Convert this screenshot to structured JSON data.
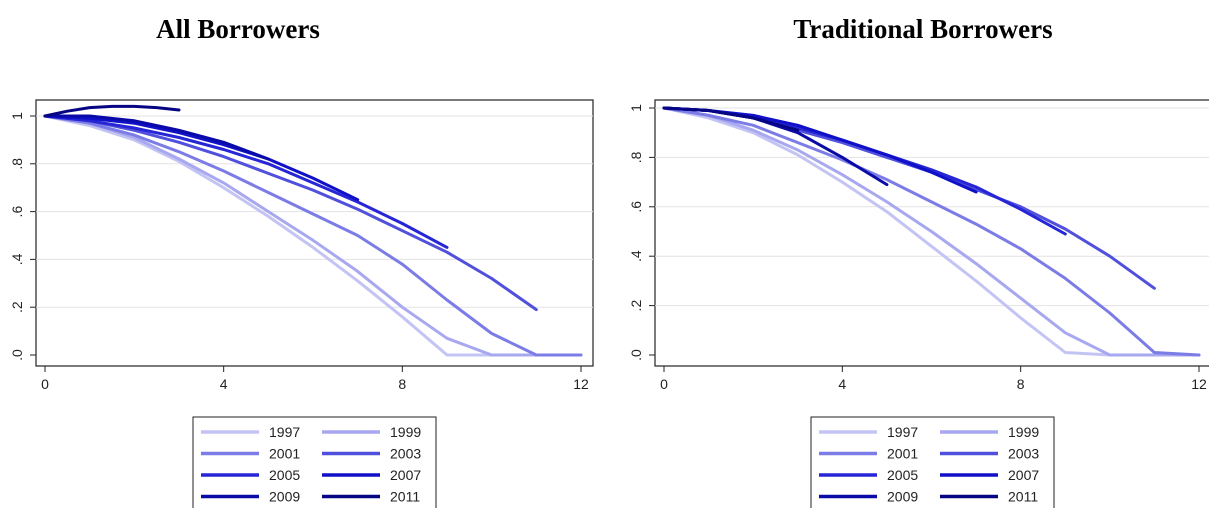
{
  "chart_data": [
    {
      "type": "line",
      "title": "All Borrowers",
      "xlabel": "",
      "ylabel": "",
      "xlim": [
        0,
        12
      ],
      "ylim": [
        0,
        1
      ],
      "x_ticks": [
        "0",
        "4",
        "8",
        "12"
      ],
      "y_ticks": [
        ".0",
        ".2",
        ".4",
        ".6",
        ".8",
        "1"
      ],
      "grid": true,
      "legend": "bottom",
      "series": [
        {
          "name": "1997",
          "color": "#c4c4f4",
          "x": [
            0,
            1,
            2,
            3,
            4,
            5,
            6,
            7,
            8,
            9,
            10,
            11,
            12
          ],
          "y": [
            1,
            0.96,
            0.9,
            0.81,
            0.7,
            0.58,
            0.45,
            0.31,
            0.16,
            0,
            0,
            0,
            0
          ]
        },
        {
          "name": "1999",
          "color": "#a8a8f0",
          "x": [
            0,
            1,
            2,
            3,
            4,
            5,
            6,
            7,
            8,
            9,
            10,
            11,
            12
          ],
          "y": [
            1,
            0.97,
            0.91,
            0.82,
            0.72,
            0.6,
            0.48,
            0.35,
            0.2,
            0.07,
            0,
            0,
            0
          ]
        },
        {
          "name": "2001",
          "color": "#7c7ce6",
          "x": [
            0,
            1,
            2,
            3,
            4,
            5,
            6,
            7,
            8,
            9,
            10,
            11,
            12
          ],
          "y": [
            1,
            0.97,
            0.92,
            0.85,
            0.77,
            0.68,
            0.59,
            0.5,
            0.38,
            0.23,
            0.09,
            0,
            0
          ]
        },
        {
          "name": "2003",
          "color": "#5050dc",
          "x": [
            0,
            1,
            2,
            3,
            4,
            5,
            6,
            7,
            8,
            9,
            10,
            11
          ],
          "y": [
            1,
            0.98,
            0.94,
            0.89,
            0.83,
            0.76,
            0.69,
            0.61,
            0.52,
            0.43,
            0.32,
            0.19
          ]
        },
        {
          "name": "2005",
          "color": "#2626d6",
          "x": [
            0,
            1,
            2,
            3,
            4,
            5,
            6,
            7,
            8,
            9
          ],
          "y": [
            1,
            0.98,
            0.95,
            0.91,
            0.86,
            0.8,
            0.72,
            0.64,
            0.55,
            0.45
          ]
        },
        {
          "name": "2007",
          "color": "#1010c8",
          "x": [
            0,
            1,
            2,
            3,
            4,
            5,
            6,
            7
          ],
          "y": [
            1,
            0.99,
            0.97,
            0.93,
            0.88,
            0.82,
            0.74,
            0.65
          ]
        },
        {
          "name": "2009",
          "color": "#0a0aa8",
          "x": [
            0,
            1,
            2,
            3,
            4,
            5
          ],
          "y": [
            1,
            1,
            0.98,
            0.94,
            0.89,
            0.82
          ]
        },
        {
          "name": "2011",
          "color": "#060684",
          "x": [
            0,
            0.5,
            1,
            1.5,
            2,
            2.5,
            3
          ],
          "y": [
            1,
            1.02,
            1.035,
            1.04,
            1.04,
            1.035,
            1.025
          ]
        }
      ]
    },
    {
      "type": "line",
      "title": "Traditional Borrowers",
      "xlabel": "",
      "ylabel": "",
      "xlim": [
        0,
        12
      ],
      "ylim": [
        0,
        1
      ],
      "x_ticks": [
        "0",
        "4",
        "8",
        "12"
      ],
      "y_ticks": [
        ".0",
        ".2",
        ".4",
        ".6",
        ".8",
        "1"
      ],
      "grid": true,
      "legend": "bottom",
      "series": [
        {
          "name": "1997",
          "color": "#c4c4f4",
          "x": [
            0,
            1,
            2,
            3,
            4,
            5,
            6,
            7,
            8,
            9,
            10,
            11,
            12
          ],
          "y": [
            1,
            0.96,
            0.9,
            0.81,
            0.7,
            0.58,
            0.44,
            0.3,
            0.15,
            0.01,
            0,
            0,
            0
          ]
        },
        {
          "name": "1999",
          "color": "#a8a8f0",
          "x": [
            0,
            1,
            2,
            3,
            4,
            5,
            6,
            7,
            8,
            9,
            10,
            11,
            12
          ],
          "y": [
            1,
            0.97,
            0.91,
            0.83,
            0.73,
            0.62,
            0.5,
            0.37,
            0.23,
            0.09,
            0,
            0,
            0
          ]
        },
        {
          "name": "2001",
          "color": "#7c7ce6",
          "x": [
            0,
            1,
            2,
            3,
            4,
            5,
            6,
            7,
            8,
            9,
            10,
            11,
            12
          ],
          "y": [
            1,
            0.97,
            0.93,
            0.86,
            0.79,
            0.71,
            0.62,
            0.53,
            0.43,
            0.31,
            0.17,
            0.01,
            0
          ]
        },
        {
          "name": "2003",
          "color": "#5050dc",
          "x": [
            0,
            1,
            2,
            3,
            4,
            5,
            6,
            7,
            8,
            9,
            10,
            11
          ],
          "y": [
            1,
            0.99,
            0.96,
            0.91,
            0.86,
            0.8,
            0.74,
            0.67,
            0.6,
            0.51,
            0.4,
            0.27
          ]
        },
        {
          "name": "2005",
          "color": "#2626d6",
          "x": [
            0,
            1,
            2,
            3,
            4,
            5,
            6,
            7,
            8,
            9
          ],
          "y": [
            1,
            0.99,
            0.96,
            0.92,
            0.87,
            0.81,
            0.75,
            0.68,
            0.59,
            0.49
          ]
        },
        {
          "name": "2007",
          "color": "#1010c8",
          "x": [
            0,
            1,
            2,
            3,
            4,
            5,
            6,
            7
          ],
          "y": [
            1,
            0.99,
            0.97,
            0.93,
            0.87,
            0.81,
            0.74,
            0.66
          ]
        },
        {
          "name": "2009",
          "color": "#0a0aa8",
          "x": [
            0,
            1,
            2,
            3,
            4,
            5
          ],
          "y": [
            1,
            0.99,
            0.96,
            0.9,
            0.8,
            0.69
          ]
        },
        {
          "name": "2011",
          "color": "#060684",
          "x": [
            0,
            1,
            2,
            3
          ],
          "y": [
            1,
            0.99,
            0.96,
            0.91
          ]
        }
      ]
    }
  ]
}
